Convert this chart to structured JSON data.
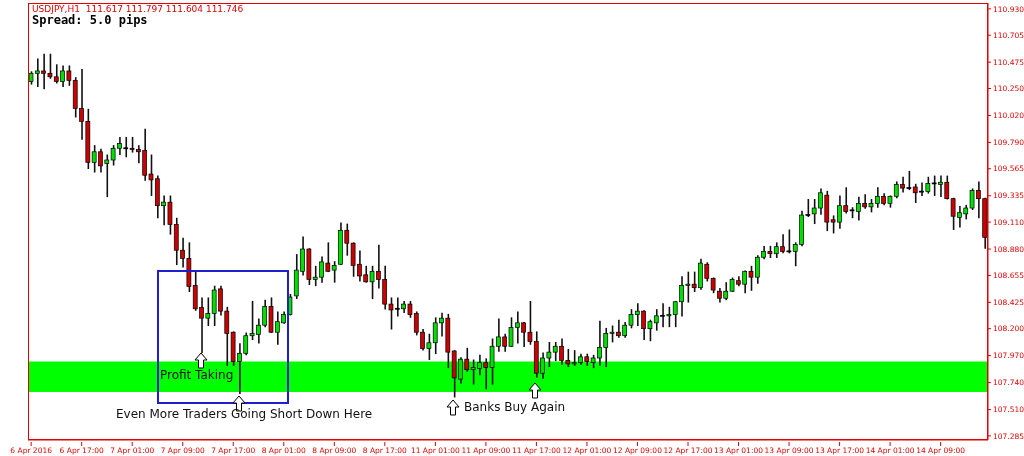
{
  "chart_data": {
    "type": "candlestick",
    "title": "USDJPY,H1  111.617 111.797 111.604 111.746",
    "subtitle": "Spread: 5.0 pips",
    "annotations": [
      "Profit Taking",
      {
        "text": "Even More Traders Going Short Down Here",
        "y": 107.65
      },
      {
        "text": "Banks Buy Again",
        "y": 107.62
      }
    ],
    "categories": [
      "6 Apr 2016",
      null,
      null,
      null,
      null,
      null,
      null,
      null,
      "6 Apr 17:00",
      null,
      null,
      null,
      null,
      null,
      null,
      null,
      "7 Apr 01:00",
      null,
      null,
      null,
      null,
      null,
      null,
      null,
      "7 Apr 09:00",
      null,
      null,
      null,
      null,
      null,
      null,
      null,
      "7 Apr 17:00",
      null,
      null,
      null,
      null,
      null,
      null,
      null,
      "8 Apr 01:00",
      null,
      null,
      null,
      null,
      null,
      null,
      null,
      "8 Apr 09:00",
      null,
      null,
      null,
      null,
      null,
      null,
      null,
      "8 Apr 17:00",
      null,
      null,
      null,
      null,
      null,
      null,
      null,
      "11 Apr 01:00",
      null,
      null,
      null,
      null,
      null,
      null,
      null,
      "11 Apr 09:00",
      null,
      null,
      null,
      null,
      null,
      null,
      null,
      "11 Apr 17:00",
      null,
      null,
      null,
      null,
      null,
      null,
      null,
      "12 Apr 01:00",
      null,
      null,
      null,
      null,
      null,
      null,
      null,
      "12 Apr 09:00",
      null,
      null,
      null,
      null,
      null,
      null,
      null,
      "12 Apr 17:00",
      null,
      null,
      null,
      null,
      null,
      null,
      null,
      "13 Apr 01:00",
      null,
      null,
      null,
      null,
      null,
      null,
      null,
      "13 Apr 09:00",
      null,
      null,
      null,
      null,
      null,
      null,
      null,
      "13 Apr 17:00",
      null,
      null,
      null,
      null,
      null,
      null,
      null,
      "14 Apr 01:00",
      null,
      null,
      null,
      null,
      null,
      null,
      null,
      "14 Apr 09:00",
      null,
      null,
      null,
      null,
      null,
      null,
      null
    ],
    "ohlc": [
      [
        110.31,
        110.39,
        110.29,
        110.38
      ],
      [
        110.38,
        110.5,
        110.27,
        110.4
      ],
      [
        110.4,
        110.54,
        110.25,
        110.38
      ],
      [
        110.38,
        110.54,
        110.34,
        110.35
      ],
      [
        110.35,
        110.45,
        110.3,
        110.31
      ],
      [
        110.31,
        110.44,
        110.27,
        110.4
      ],
      [
        110.4,
        110.44,
        110.28,
        110.32
      ],
      [
        110.32,
        110.34,
        110.01,
        110.08
      ],
      [
        110.08,
        110.41,
        109.82,
        109.97
      ],
      [
        109.97,
        110.07,
        109.57,
        109.62
      ],
      [
        109.62,
        109.76,
        109.54,
        109.71
      ],
      [
        109.71,
        109.73,
        109.54,
        109.59
      ],
      [
        109.61,
        109.68,
        109.33,
        109.64
      ],
      [
        109.64,
        109.76,
        109.6,
        109.74
      ],
      [
        109.74,
        109.83,
        109.69,
        109.78
      ],
      [
        109.74,
        109.83,
        109.67,
        109.74
      ],
      [
        109.74,
        109.83,
        109.71,
        109.73
      ],
      [
        109.73,
        109.76,
        109.62,
        109.71
      ],
      [
        109.72,
        109.9,
        109.47,
        109.51
      ],
      [
        109.52,
        109.68,
        109.34,
        109.47
      ],
      [
        109.48,
        109.5,
        109.15,
        109.25
      ],
      [
        109.25,
        109.33,
        109.09,
        109.28
      ],
      [
        109.28,
        109.33,
        109.01,
        109.09
      ],
      [
        109.09,
        109.14,
        108.75,
        108.87
      ],
      [
        108.87,
        108.97,
        108.73,
        108.8
      ],
      [
        108.8,
        108.93,
        108.52,
        108.56
      ],
      [
        108.57,
        108.68,
        108.36,
        108.37
      ],
      [
        108.38,
        108.46,
        108.0,
        108.29
      ],
      [
        108.29,
        108.46,
        108.23,
        108.33
      ],
      [
        108.33,
        108.56,
        108.23,
        108.53
      ],
      [
        108.54,
        108.56,
        108.32,
        108.35
      ],
      [
        108.35,
        108.38,
        107.89,
        108.16
      ],
      [
        108.17,
        108.17,
        107.89,
        107.92
      ],
      [
        107.92,
        108.07,
        107.65,
        107.99
      ],
      [
        107.99,
        108.16,
        107.98,
        108.14
      ],
      [
        108.14,
        108.43,
        108.11,
        108.16
      ],
      [
        108.15,
        108.28,
        108.08,
        108.23
      ],
      [
        108.23,
        108.44,
        108.22,
        108.39
      ],
      [
        108.39,
        108.46,
        108.17,
        108.17
      ],
      [
        108.17,
        108.34,
        108.07,
        108.26
      ],
      [
        108.25,
        108.34,
        108.25,
        108.32
      ],
      [
        108.32,
        108.49,
        108.32,
        108.47
      ],
      [
        108.48,
        108.83,
        108.46,
        108.7
      ],
      [
        108.69,
        108.98,
        108.66,
        108.88
      ],
      [
        108.88,
        108.88,
        108.58,
        108.62
      ],
      [
        108.62,
        108.73,
        108.57,
        108.64
      ],
      [
        108.64,
        108.81,
        108.6,
        108.77
      ],
      [
        108.76,
        108.93,
        108.69,
        108.69
      ],
      [
        108.7,
        108.77,
        108.6,
        108.74
      ],
      [
        108.75,
        109.1,
        108.75,
        109.04
      ],
      [
        109.04,
        109.09,
        108.83,
        108.93
      ],
      [
        108.93,
        108.93,
        108.65,
        108.74
      ],
      [
        108.75,
        108.86,
        108.61,
        108.65
      ],
      [
        108.66,
        108.73,
        108.6,
        108.6
      ],
      [
        108.6,
        108.73,
        108.46,
        108.69
      ],
      [
        108.69,
        108.91,
        108.55,
        108.62
      ],
      [
        108.62,
        108.73,
        108.37,
        108.41
      ],
      [
        108.41,
        108.46,
        108.2,
        108.36
      ],
      [
        108.37,
        108.46,
        108.31,
        108.37
      ],
      [
        108.37,
        108.43,
        108.34,
        108.41
      ],
      [
        108.41,
        108.43,
        108.3,
        108.32
      ],
      [
        108.33,
        108.34,
        108.15,
        108.17
      ],
      [
        108.17,
        108.19,
        108.02,
        108.03
      ],
      [
        108.03,
        108.15,
        107.94,
        108.08
      ],
      [
        108.08,
        108.29,
        107.99,
        108.25
      ],
      [
        108.25,
        108.33,
        108.14,
        108.29
      ],
      [
        108.29,
        108.32,
        107.87,
        108.0
      ],
      [
        108.01,
        108.01,
        107.62,
        107.78
      ],
      [
        107.77,
        107.95,
        107.74,
        107.94
      ],
      [
        107.94,
        108.03,
        107.84,
        107.85
      ],
      [
        107.85,
        107.93,
        107.73,
        107.87
      ],
      [
        107.86,
        107.97,
        107.81,
        107.91
      ],
      [
        107.91,
        107.94,
        107.69,
        107.87
      ],
      [
        107.87,
        108.11,
        107.73,
        108.05
      ],
      [
        108.05,
        108.28,
        108.01,
        108.13
      ],
      [
        108.13,
        108.15,
        108.01,
        108.05
      ],
      [
        108.05,
        108.29,
        108.05,
        108.21
      ],
      [
        108.21,
        108.34,
        108.08,
        108.25
      ],
      [
        108.25,
        108.25,
        108.05,
        108.17
      ],
      [
        108.17,
        108.43,
        108.07,
        108.09
      ],
      [
        108.09,
        108.17,
        107.79,
        107.82
      ],
      [
        107.82,
        107.99,
        107.78,
        107.95
      ],
      [
        107.95,
        108.08,
        107.88,
        108.0
      ],
      [
        108.0,
        108.08,
        107.93,
        108.05
      ],
      [
        108.05,
        108.11,
        107.9,
        107.93
      ],
      [
        107.93,
        108.02,
        107.88,
        107.9
      ],
      [
        107.9,
        108.01,
        107.89,
        107.91
      ],
      [
        107.91,
        107.98,
        107.9,
        107.96
      ],
      [
        107.96,
        107.98,
        107.89,
        107.92
      ],
      [
        107.91,
        107.97,
        107.87,
        107.95
      ],
      [
        107.95,
        108.26,
        107.89,
        108.04
      ],
      [
        108.04,
        108.2,
        107.88,
        108.16
      ],
      [
        108.16,
        108.22,
        108.09,
        108.17
      ],
      [
        108.17,
        108.27,
        108.13,
        108.14
      ],
      [
        108.14,
        108.25,
        108.13,
        108.23
      ],
      [
        108.23,
        108.36,
        108.21,
        108.32
      ],
      [
        108.32,
        108.41,
        108.23,
        108.35
      ],
      [
        108.35,
        108.35,
        108.11,
        108.2
      ],
      [
        108.2,
        108.27,
        108.1,
        108.26
      ],
      [
        108.25,
        108.36,
        108.19,
        108.31
      ],
      [
        108.31,
        108.41,
        108.22,
        108.31
      ],
      [
        108.31,
        108.38,
        108.22,
        108.32
      ],
      [
        108.32,
        108.43,
        108.22,
        108.43
      ],
      [
        108.43,
        108.64,
        108.31,
        108.57
      ],
      [
        108.57,
        108.68,
        108.43,
        108.58
      ],
      [
        108.58,
        108.68,
        108.52,
        108.55
      ],
      [
        108.55,
        108.79,
        108.54,
        108.76
      ],
      [
        108.75,
        108.76,
        108.61,
        108.63
      ],
      [
        108.63,
        108.63,
        108.51,
        108.53
      ],
      [
        108.52,
        108.54,
        108.43,
        108.46
      ],
      [
        108.46,
        108.59,
        108.45,
        108.52
      ],
      [
        108.52,
        108.63,
        108.52,
        108.62
      ],
      [
        108.61,
        108.64,
        108.57,
        108.58
      ],
      [
        108.58,
        108.69,
        108.51,
        108.69
      ],
      [
        108.69,
        108.73,
        108.53,
        108.64
      ],
      [
        108.64,
        108.82,
        108.59,
        108.81
      ],
      [
        108.81,
        108.9,
        108.8,
        108.86
      ],
      [
        108.86,
        108.9,
        108.81,
        108.84
      ],
      [
        108.84,
        108.93,
        108.81,
        108.9
      ],
      [
        108.9,
        109.0,
        108.85,
        108.86
      ],
      [
        108.86,
        109.04,
        108.85,
        108.86
      ],
      [
        108.86,
        108.93,
        108.74,
        108.92
      ],
      [
        108.92,
        109.2,
        108.91,
        109.17
      ],
      [
        109.17,
        109.3,
        109.16,
        109.17
      ],
      [
        109.18,
        109.3,
        109.1,
        109.23
      ],
      [
        109.23,
        109.39,
        109.18,
        109.36
      ],
      [
        109.34,
        109.37,
        109.04,
        109.11
      ],
      [
        109.13,
        109.16,
        109.02,
        109.11
      ],
      [
        109.11,
        109.33,
        109.06,
        109.25
      ],
      [
        109.25,
        109.4,
        109.19,
        109.2
      ],
      [
        109.21,
        109.23,
        109.15,
        109.21
      ],
      [
        109.2,
        109.32,
        109.13,
        109.27
      ],
      [
        109.27,
        109.34,
        109.23,
        109.24
      ],
      [
        109.24,
        109.3,
        109.2,
        109.27
      ],
      [
        109.27,
        109.4,
        109.24,
        109.33
      ],
      [
        109.33,
        109.35,
        109.26,
        109.27
      ],
      [
        109.27,
        109.33,
        109.24,
        109.33
      ],
      [
        109.33,
        109.45,
        109.32,
        109.43
      ],
      [
        109.43,
        109.49,
        109.37,
        109.4
      ],
      [
        109.4,
        109.54,
        109.39,
        109.4
      ],
      [
        109.41,
        109.43,
        109.28,
        109.36
      ],
      [
        109.37,
        109.44,
        109.34,
        109.37
      ],
      [
        109.37,
        109.49,
        109.36,
        109.44
      ],
      [
        109.44,
        109.5,
        109.34,
        109.44
      ],
      [
        109.43,
        109.5,
        109.33,
        109.45
      ],
      [
        109.45,
        109.5,
        109.31,
        109.31
      ],
      [
        109.31,
        109.31,
        109.05,
        109.16
      ],
      [
        109.15,
        109.24,
        109.07,
        109.19
      ],
      [
        109.18,
        109.25,
        109.14,
        109.23
      ],
      [
        109.23,
        109.39,
        109.22,
        109.38
      ],
      [
        109.38,
        109.45,
        109.15,
        109.31
      ],
      [
        109.31,
        109.31,
        108.89,
        108.98
      ]
    ],
    "colors": [
      "#00e000",
      "#00e000",
      "#cc0000",
      "#cc0000",
      "#cc0000",
      "#00e000",
      "#cc0000",
      "#cc0000",
      "#cc0000",
      "#cc0000",
      "#00e000",
      "#cc0000",
      "#00e000",
      "#00e000",
      "#00e000",
      "#000000",
      "#cc0000",
      "#cc0000",
      "#cc0000",
      "#cc0000",
      "#cc0000",
      "#00e000",
      "#cc0000",
      "#cc0000",
      "#cc0000",
      "#cc0000",
      "#cc0000",
      "#cc0000",
      "#00e000",
      "#00e000",
      "#cc0000",
      "#cc0000",
      "#cc0000",
      "#00e000",
      "#00e000",
      "#00e000",
      "#00e000",
      "#00e000",
      "#cc0000",
      "#00e000",
      "#00e000",
      "#00e000",
      "#00e000",
      "#00e000",
      "#cc0000",
      "#00e000",
      "#00e000",
      "#cc0000",
      "#00e000",
      "#00e000",
      "#cc0000",
      "#cc0000",
      "#cc0000",
      "#cc0000",
      "#00e000",
      "#cc0000",
      "#cc0000",
      "#cc0000",
      "#000000",
      "#00e000",
      "#cc0000",
      "#cc0000",
      "#cc0000",
      "#00e000",
      "#00e000",
      "#00e000",
      "#cc0000",
      "#cc0000",
      "#00e000",
      "#cc0000",
      "#00e000",
      "#00e000",
      "#cc0000",
      "#00e000",
      "#00e000",
      "#cc0000",
      "#00e000",
      "#00e000",
      "#cc0000",
      "#cc0000",
      "#cc0000",
      "#00e000",
      "#00e000",
      "#00e000",
      "#cc0000",
      "#cc0000",
      "#00e000",
      "#00e000",
      "#cc0000",
      "#00e000",
      "#00e000",
      "#00e000",
      "#00e000",
      "#cc0000",
      "#00e000",
      "#00e000",
      "#00e000",
      "#cc0000",
      "#00e000",
      "#00e000",
      "#000000",
      "#00e000",
      "#00e000",
      "#00e000",
      "#00e000",
      "#cc0000",
      "#00e000",
      "#cc0000",
      "#cc0000",
      "#cc0000",
      "#00e000",
      "#00e000",
      "#cc0000",
      "#00e000",
      "#cc0000",
      "#00e000",
      "#00e000",
      "#cc0000",
      "#00e000",
      "#cc0000",
      "#000000",
      "#00e000",
      "#00e000",
      "#000000",
      "#00e000",
      "#00e000",
      "#cc0000",
      "#cc0000",
      "#00e000",
      "#cc0000",
      "#000000",
      "#00e000",
      "#cc0000",
      "#00e000",
      "#00e000",
      "#cc0000",
      "#00e000",
      "#00e000",
      "#cc0000",
      "#000000",
      "#cc0000",
      "#000000",
      "#00e000",
      "#000000",
      "#00e000",
      "#cc0000",
      "#cc0000",
      "#00e000",
      "#00e000",
      "#00e000",
      "#cc0000",
      "#cc0000"
    ],
    "ylim": [
      107.25,
      110.98
    ],
    "yticks": [
      {
        "value": 107.285,
        "label": "107.285"
      },
      {
        "value": 107.51,
        "label": "107.510"
      },
      {
        "value": 107.74,
        "label": "107.740"
      },
      {
        "value": 107.97,
        "label": "107.970"
      },
      {
        "value": 108.2,
        "label": "108.200"
      },
      {
        "value": 108.425,
        "label": "108.425"
      },
      {
        "value": 108.655,
        "label": "108.655"
      },
      {
        "value": 108.88,
        "label": "108.880"
      },
      {
        "value": 109.11,
        "label": "109.110"
      },
      {
        "value": 109.335,
        "label": "109.335"
      },
      {
        "value": 109.565,
        "label": "109.565"
      },
      {
        "value": 109.79,
        "label": "109.790"
      },
      {
        "value": 110.02,
        "label": "110.020"
      },
      {
        "value": 110.25,
        "label": "110.250"
      },
      {
        "value": 110.475,
        "label": "110.475"
      },
      {
        "value": 110.705,
        "label": "110.705"
      },
      {
        "value": 110.93,
        "label": "110.930"
      }
    ],
    "bands": [
      {
        "axis": "y",
        "from": 107.66,
        "to": 107.92,
        "color": "#00ff00"
      }
    ]
  }
}
